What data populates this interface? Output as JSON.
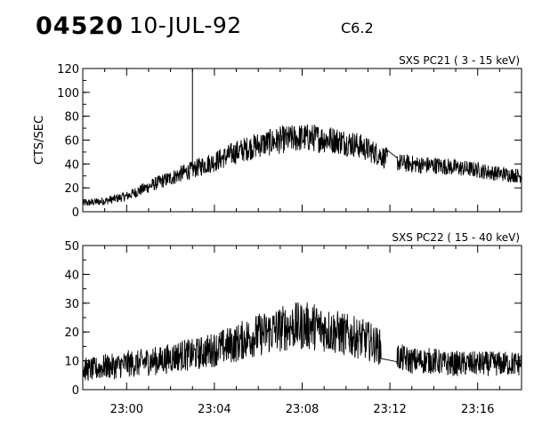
{
  "header": {
    "event_id": "04520",
    "date": "10-JUL-92",
    "flare_class": "C6.2"
  },
  "chart_data": [
    {
      "type": "line",
      "title": "SXS PC21  (  3 - 15 keV)",
      "ylabel": "CTS/SEC",
      "xlabel": "",
      "ylim": [
        0,
        120
      ],
      "yticks": [
        0,
        20,
        40,
        60,
        80,
        100,
        120
      ],
      "xlim_minutes": [
        0,
        20
      ],
      "xticks_minutes": [
        2,
        6,
        10,
        14,
        18
      ],
      "xtick_labels": [
        "23:00",
        "23:04",
        "23:08",
        "23:12",
        "23:16"
      ],
      "x_range": [
        "22:58",
        "23:18"
      ],
      "grid": false,
      "spike": {
        "t_minutes": 5.0,
        "value": 122
      },
      "series": [
        {
          "color": "#000000",
          "x_minutes": [
            0,
            0.5,
            1.0,
            1.5,
            2.0,
            2.5,
            3.0,
            3.5,
            4.0,
            4.5,
            5.0,
            5.5,
            6.0,
            6.5,
            7.0,
            7.5,
            8.0,
            8.5,
            9.0,
            9.5,
            10.0,
            10.5,
            11.0,
            11.5,
            12.0,
            12.5,
            13.0,
            13.5,
            14.0,
            14.5,
            15.0,
            15.5,
            16.0,
            16.5,
            17.0,
            17.5,
            18.0,
            18.5,
            19.0,
            19.5,
            20.0
          ],
          "values": [
            7,
            8,
            9,
            11,
            13,
            17,
            21,
            25,
            28,
            32,
            35,
            39,
            42,
            46,
            50,
            53,
            56,
            58,
            60,
            61,
            62,
            62,
            61,
            60,
            58,
            56,
            52,
            48,
            43,
            41,
            40,
            39,
            39,
            38,
            37,
            36,
            35,
            33,
            32,
            31,
            30
          ]
        }
      ]
    },
    {
      "type": "line",
      "title": "SXS PC22  ( 15 - 40 keV)",
      "ylabel": "",
      "xlabel": "",
      "ylim": [
        0,
        50
      ],
      "yticks": [
        0,
        10,
        20,
        30,
        40,
        50
      ],
      "xlim_minutes": [
        0,
        20
      ],
      "xticks_minutes": [
        2,
        6,
        10,
        14,
        18
      ],
      "xtick_labels": [
        "23:00",
        "23:04",
        "23:08",
        "23:12",
        "23:16"
      ],
      "x_range": [
        "22:58",
        "23:18"
      ],
      "grid": false,
      "series": [
        {
          "color": "#000000",
          "x_minutes": [
            0,
            0.5,
            1.0,
            1.5,
            2.0,
            2.5,
            3.0,
            3.5,
            4.0,
            4.5,
            5.0,
            5.5,
            6.0,
            6.5,
            7.0,
            7.5,
            8.0,
            8.5,
            9.0,
            9.5,
            10.0,
            10.5,
            11.0,
            11.5,
            12.0,
            12.5,
            13.0,
            13.5,
            14.0,
            14.5,
            15.0,
            15.5,
            16.0,
            16.5,
            17.0,
            17.5,
            18.0,
            18.5,
            19.0,
            19.5,
            20.0
          ],
          "values": [
            7,
            7,
            8,
            8,
            9,
            9,
            10,
            10,
            11,
            12,
            12,
            13,
            14,
            15,
            16,
            18,
            19,
            20,
            21,
            22,
            22,
            22,
            21,
            20,
            19,
            18,
            17,
            15,
            12,
            11,
            10,
            10,
            10,
            9,
            9,
            9,
            9,
            9,
            9,
            9,
            9
          ]
        }
      ]
    }
  ]
}
